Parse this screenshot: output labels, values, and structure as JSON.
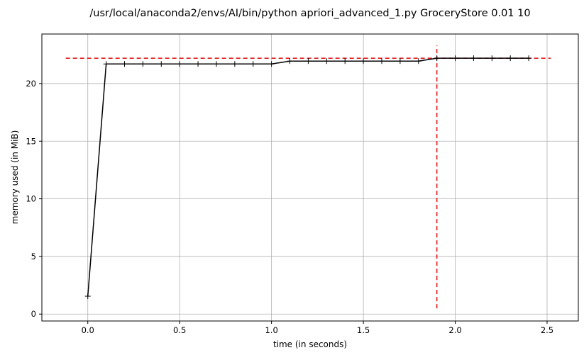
{
  "colors": {
    "line": "#000000",
    "peak_marker": "#e31a1c",
    "grid": "#b0b0b0",
    "axes": "#000000",
    "background": "#ffffff"
  },
  "chart_data": {
    "type": "line",
    "title": "/usr/local/anaconda2/envs/AI/bin/python apriori_advanced_1.py GroceryStore 0.01 10",
    "xlabel": "time (in seconds)",
    "ylabel": "memory used (in MiB)",
    "xlim": [
      -0.25,
      2.67
    ],
    "ylim": [
      -0.6,
      24.3
    ],
    "xticks": [
      0.0,
      0.5,
      1.0,
      1.5,
      2.0,
      2.5
    ],
    "xtick_labels": [
      "0.0",
      "0.5",
      "1.0",
      "1.5",
      "2.0",
      "2.5"
    ],
    "yticks": [
      0,
      5,
      10,
      15,
      20
    ],
    "ytick_labels": [
      "0",
      "5",
      "10",
      "15",
      "20"
    ],
    "grid": true,
    "legend": "none",
    "marker": "+",
    "series": [
      {
        "x": [
          0.0,
          0.1,
          0.2,
          0.3,
          0.4,
          0.5,
          0.6,
          0.7,
          0.8,
          0.9,
          1.0,
          1.1,
          1.2,
          1.3,
          1.4,
          1.5,
          1.6,
          1.7,
          1.8,
          1.9,
          2.0,
          2.1,
          2.2,
          2.3,
          2.4
        ],
        "y": [
          1.55,
          21.7,
          21.7,
          21.7,
          21.7,
          21.7,
          21.7,
          21.7,
          21.7,
          21.7,
          21.7,
          21.95,
          21.95,
          21.95,
          21.95,
          21.95,
          21.95,
          21.95,
          21.95,
          22.2,
          22.2,
          22.2,
          22.2,
          22.2,
          22.2
        ]
      }
    ],
    "peak": {
      "x": 1.9,
      "y": 22.2,
      "hline_x": [
        -0.12,
        2.52
      ],
      "vline_y": [
        0.5,
        23.3
      ]
    }
  }
}
